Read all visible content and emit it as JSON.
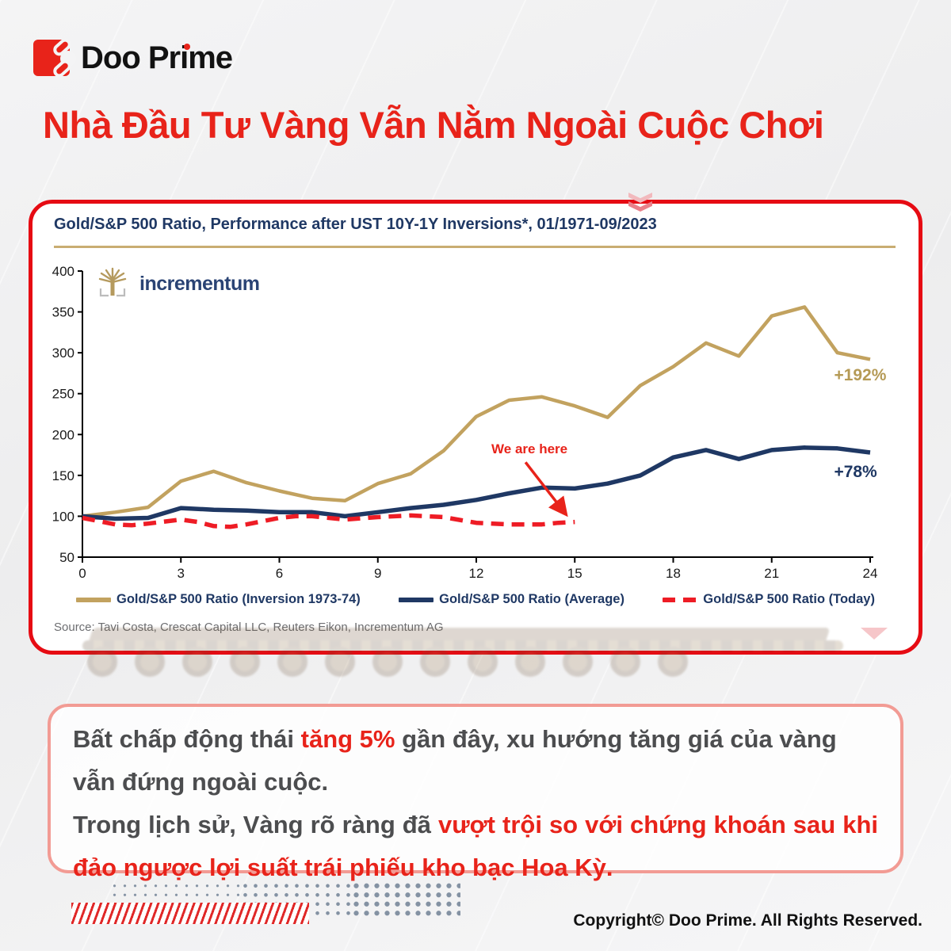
{
  "brand": {
    "name": "Doo Prime"
  },
  "title": "Nhà Đầu Tư Vàng Vẫn Nằm Ngoài Cuộc Chơi",
  "chart_panel": {
    "title": "Gold/S&P 500 Ratio, Performance after UST 10Y-1Y Inversions*, 01/1971-09/2023",
    "logo_text": "incrementum",
    "source": "Source: Tavi Costa, Crescat Capital LLC, Reuters Eikon, Incrementum AG"
  },
  "chart_data": {
    "type": "line",
    "title": "Gold/S&P 500 Ratio, Performance after UST 10Y-1Y Inversions*, 01/1971-09/2023",
    "xlabel": "",
    "ylabel": "",
    "xlim": [
      0,
      24
    ],
    "ylim": [
      50,
      400
    ],
    "xticks": [
      0,
      3,
      6,
      9,
      12,
      15,
      18,
      21,
      24
    ],
    "yticks": [
      50,
      100,
      150,
      200,
      250,
      300,
      350,
      400
    ],
    "grid": false,
    "legend_position": "bottom",
    "series": [
      {
        "name": "Gold/S&P 500 Ratio (Inversion 1973-74)",
        "color": "#c2a25f",
        "style": "solid",
        "width": 4.5,
        "x": [
          0,
          1,
          2,
          3,
          4,
          5,
          6,
          7,
          8,
          9,
          10,
          11,
          12,
          13,
          14,
          15,
          16,
          17,
          18,
          19,
          20,
          21,
          22,
          23,
          24
        ],
        "values": [
          100,
          105,
          111,
          143,
          155,
          141,
          131,
          122,
          119,
          140,
          152,
          180,
          222,
          242,
          246,
          235,
          221,
          260,
          283,
          312,
          296,
          345,
          356,
          300,
          292
        ]
      },
      {
        "name": "Gold/S&P 500 Ratio (Average)",
        "color": "#1f3864",
        "style": "solid",
        "width": 5.5,
        "x": [
          0,
          1,
          2,
          3,
          4,
          5,
          6,
          7,
          8,
          9,
          10,
          11,
          12,
          13,
          14,
          15,
          16,
          17,
          18,
          19,
          20,
          21,
          22,
          23,
          24
        ],
        "values": [
          100,
          97,
          98,
          110,
          108,
          107,
          105,
          105,
          100,
          105,
          110,
          114,
          120,
          128,
          135,
          134,
          140,
          150,
          172,
          181,
          170,
          181,
          184,
          183,
          178
        ]
      },
      {
        "name": "Gold/S&P 500 Ratio (Today)",
        "color": "#ee1c25",
        "style": "dashed",
        "width": 5.5,
        "x": [
          0,
          1,
          1.5,
          2,
          3,
          3.5,
          4,
          4.5,
          5,
          6,
          6.5,
          7,
          8,
          9,
          10,
          11,
          12,
          13,
          14,
          14.5,
          15
        ],
        "values": [
          98,
          90,
          89,
          91,
          96,
          93,
          88,
          87,
          90,
          98,
          100,
          100,
          96,
          99,
          101,
          99,
          92,
          90,
          90,
          92,
          93
        ]
      }
    ],
    "annotations": [
      {
        "text": "+192%",
        "x": 22.9,
        "v": 266,
        "color": "#b59a55",
        "size": 21
      },
      {
        "text": "+78%",
        "x": 22.9,
        "v": 148,
        "color": "#1f3864",
        "size": 21
      },
      {
        "text": "We are here",
        "x": 12.46,
        "v": 177,
        "color": "#e8231a",
        "size": 17,
        "arrow": {
          "x1": 13.5,
          "v1": 166,
          "x2": 14.72,
          "v2": 103
        }
      }
    ]
  },
  "callout": {
    "p1": [
      {
        "t": "Bất chấp động thái ",
        "red": false
      },
      {
        "t": "tăng 5%",
        "red": true
      },
      {
        "t": " gần đây, xu hướng tăng giá của vàng vẫn đứng ngoài cuộc.",
        "red": false
      }
    ],
    "p2": [
      {
        "t": "Trong lịch sử, Vàng rõ ràng đã ",
        "red": false
      },
      {
        "t": "vượt trội so với chứng khoán sau khi đảo ngược lợi suất trái phiếu kho bạc Hoa Kỳ.",
        "red": true
      }
    ]
  },
  "footer": {
    "copyright": "Copyright© Doo Prime. All Rights Reserved."
  },
  "colors": {
    "accent_red": "#e8231a",
    "panel_border": "#e60b13",
    "gold_line": "#c2a25f",
    "navy_line": "#1f3864",
    "red_line": "#ee1c25",
    "body_text": "#4c4d4f",
    "source_text": "#6d6e71"
  }
}
